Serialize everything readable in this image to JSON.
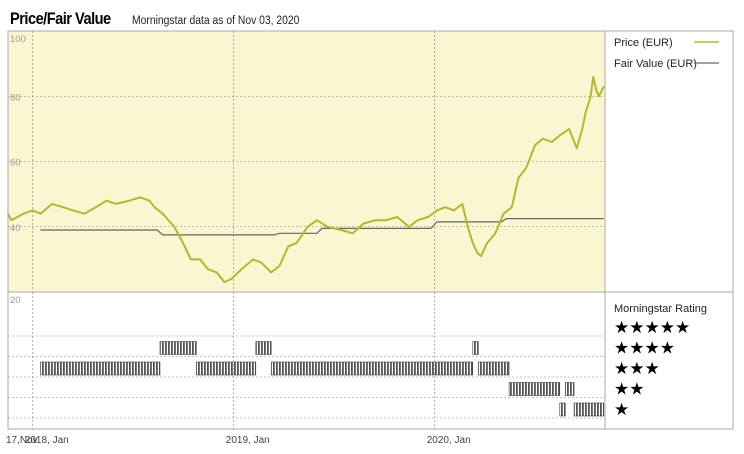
{
  "header": {
    "title": "Price/Fair Value",
    "subtitle": "Morningstar data as of Nov 03, 2020"
  },
  "colors": {
    "price": "#b5b82a",
    "fair_value": "#666666",
    "panel_bg": "#faf6d2",
    "rating_bar": "#555555"
  },
  "chart_data": [
    {
      "type": "line",
      "title": "Price/Fair Value",
      "x_domain": [
        "2017-11-17",
        "2020-11-03"
      ],
      "ylim": [
        20,
        100
      ],
      "y_ticks": [
        40,
        60,
        80,
        100
      ],
      "y_tick_labels": [
        "40",
        "60",
        "80",
        "100"
      ],
      "x_ticks": [
        "2018-01-01",
        "2019-01-01",
        "2020-01-01"
      ],
      "x_tick_labels": [
        "2018, Jan",
        "2019, Jan",
        "2020, Jan"
      ],
      "x_start_label": "17,Nov",
      "legend_position": "right",
      "grid": true,
      "series": [
        {
          "name": "Price (EUR)",
          "x": [
            "2017-11-17",
            "2017-11-23",
            "2017-12-04",
            "2017-12-15",
            "2018-01-01",
            "2018-01-15",
            "2018-02-05",
            "2018-02-25",
            "2018-03-15",
            "2018-04-05",
            "2018-04-25",
            "2018-05-15",
            "2018-06-01",
            "2018-06-25",
            "2018-07-15",
            "2018-08-01",
            "2018-08-10",
            "2018-08-25",
            "2018-09-15",
            "2018-10-01",
            "2018-10-15",
            "2018-11-01",
            "2018-11-15",
            "2018-12-01",
            "2018-12-15",
            "2018-12-28",
            "2019-01-15",
            "2019-02-05",
            "2019-02-20",
            "2019-03-10",
            "2019-03-25",
            "2019-04-10",
            "2019-04-25",
            "2019-05-15",
            "2019-06-01",
            "2019-06-20",
            "2019-07-15",
            "2019-08-05",
            "2019-08-25",
            "2019-09-15",
            "2019-10-05",
            "2019-10-25",
            "2019-11-15",
            "2019-12-01",
            "2019-12-20",
            "2020-01-05",
            "2020-01-20",
            "2020-02-05",
            "2020-02-20",
            "2020-03-01",
            "2020-03-10",
            "2020-03-18",
            "2020-03-25",
            "2020-04-05",
            "2020-04-20",
            "2020-05-05",
            "2020-05-20",
            "2020-06-01",
            "2020-06-15",
            "2020-07-01",
            "2020-07-15",
            "2020-08-01",
            "2020-08-15",
            "2020-09-01",
            "2020-09-15",
            "2020-09-25",
            "2020-10-01",
            "2020-10-10",
            "2020-10-15",
            "2020-10-20",
            "2020-10-25",
            "2020-11-03"
          ],
          "y": [
            44,
            42,
            43,
            44,
            45,
            44,
            47,
            46,
            45,
            44,
            46,
            48,
            47,
            48,
            49,
            48,
            46,
            44,
            40,
            35,
            30,
            30,
            27,
            26,
            23,
            24,
            27,
            30,
            29,
            26,
            28,
            34,
            35,
            40,
            42,
            40,
            39,
            38,
            41,
            42,
            42,
            43,
            40,
            42,
            43,
            45,
            46,
            45,
            47,
            40,
            35,
            32,
            31,
            35,
            38,
            44,
            46,
            55,
            58,
            65,
            67,
            66,
            68,
            70,
            64,
            70,
            75,
            80,
            86,
            82,
            80,
            83
          ]
        },
        {
          "name": "Fair Value (EUR)",
          "x": [
            "2018-01-15",
            "2018-08-15",
            "2018-08-25",
            "2019-03-15",
            "2019-03-25",
            "2019-06-01",
            "2019-06-10",
            "2019-12-25",
            "2020-01-05",
            "2020-05-01",
            "2020-05-10",
            "2020-11-03"
          ],
          "y": [
            39,
            39,
            37.5,
            37.5,
            38,
            38,
            39.5,
            39.5,
            41.5,
            41.5,
            42.5,
            42.5
          ]
        }
      ]
    },
    {
      "type": "bar",
      "title": "Morningstar Rating",
      "y_tick_labels": [
        "20"
      ],
      "rating_levels": [
        "★★★★★",
        "★★★★",
        "★★★",
        "★★",
        "★"
      ],
      "ratings": [
        {
          "stars": 3,
          "from": "2018-01-15",
          "to": "2018-08-20"
        },
        {
          "stars": 4,
          "from": "2018-08-20",
          "to": "2018-10-25"
        },
        {
          "stars": 3,
          "from": "2018-10-25",
          "to": "2019-02-10"
        },
        {
          "stars": 4,
          "from": "2019-02-10",
          "to": "2019-03-10"
        },
        {
          "stars": 3,
          "from": "2019-03-10",
          "to": "2020-03-10"
        },
        {
          "stars": 4,
          "from": "2020-03-10",
          "to": "2020-03-20"
        },
        {
          "stars": 3,
          "from": "2020-03-20",
          "to": "2020-05-15"
        },
        {
          "stars": 2,
          "from": "2020-05-15",
          "to": "2020-08-15"
        },
        {
          "stars": 1,
          "from": "2020-08-15",
          "to": "2020-08-25"
        },
        {
          "stars": 2,
          "from": "2020-08-25",
          "to": "2020-09-10"
        },
        {
          "stars": 1,
          "from": "2020-09-10",
          "to": "2020-11-03"
        }
      ]
    }
  ]
}
